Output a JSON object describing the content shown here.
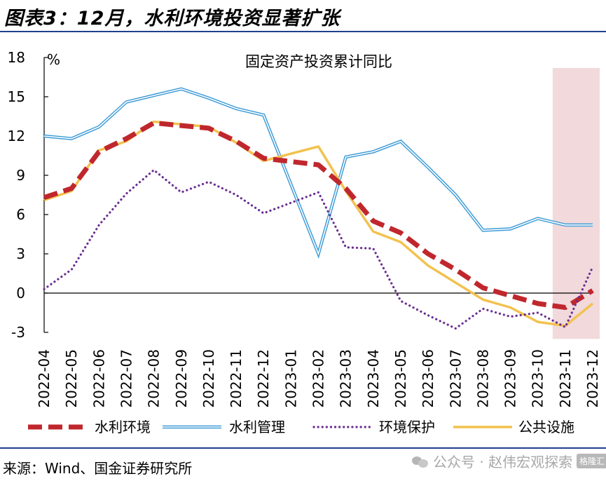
{
  "figure": {
    "title": "图表3：12月，水利环境投资显著扩张",
    "source": "来源：Wind、国金证券研究所",
    "watermark_text": "公众号 · 赵伟宏观探索",
    "watermark_badge": "格隆汇",
    "watermark_icon": "wechat-icon"
  },
  "chart_data": {
    "type": "line",
    "title": "固定资产投资累计同比",
    "ylabel": "%",
    "xlabel": "",
    "ylim": [
      -3,
      18
    ],
    "yticks": [
      18,
      15,
      12,
      9,
      6,
      3,
      0,
      -3
    ],
    "grid": false,
    "legend_position": "bottom",
    "highlight": {
      "from": "2023-11",
      "to": "2023-12",
      "color": "#f1d9dc"
    },
    "categories": [
      "2022-04",
      "2022-05",
      "2022-06",
      "2022-07",
      "2022-08",
      "2022-09",
      "2022-10",
      "2022-11",
      "2022-12",
      "2023-01",
      "2023-02",
      "2023-03",
      "2023-04",
      "2023-05",
      "2023-06",
      "2023-07",
      "2023-08",
      "2023-09",
      "2023-10",
      "2023-11",
      "2023-12"
    ],
    "series": [
      {
        "name": "水利环境",
        "color": "#c0272d",
        "style": "dashed",
        "values": [
          7.3,
          8.0,
          10.8,
          11.8,
          13.0,
          12.8,
          12.6,
          11.6,
          10.3,
          null,
          9.8,
          8.0,
          5.5,
          4.6,
          3.0,
          1.8,
          0.4,
          -0.2,
          -0.8,
          -1.1,
          0.2
        ]
      },
      {
        "name": "水利管理",
        "color": "#3e9bd7",
        "style": "double",
        "values": [
          12.0,
          11.8,
          12.7,
          14.6,
          15.1,
          15.6,
          14.9,
          14.1,
          13.6,
          null,
          3.0,
          10.4,
          10.8,
          11.6,
          9.6,
          7.5,
          4.8,
          4.9,
          5.7,
          5.2,
          5.2
        ]
      },
      {
        "name": "环境保护",
        "color": "#6a2d91",
        "style": "dotted",
        "values": [
          0.3,
          1.8,
          5.2,
          7.6,
          9.4,
          7.7,
          8.5,
          7.5,
          6.1,
          null,
          7.7,
          3.5,
          3.4,
          -0.6,
          -1.7,
          -2.7,
          -1.2,
          -1.8,
          -1.5,
          -2.6,
          2.0
        ]
      },
      {
        "name": "公共设施",
        "color": "#f2c24f",
        "style": "solid",
        "values": [
          7.1,
          7.8,
          10.9,
          11.6,
          13.1,
          12.9,
          12.7,
          11.5,
          10.1,
          null,
          11.2,
          7.8,
          4.7,
          3.9,
          2.1,
          0.8,
          -0.5,
          -1.1,
          -2.2,
          -2.5,
          -0.8
        ]
      }
    ]
  }
}
